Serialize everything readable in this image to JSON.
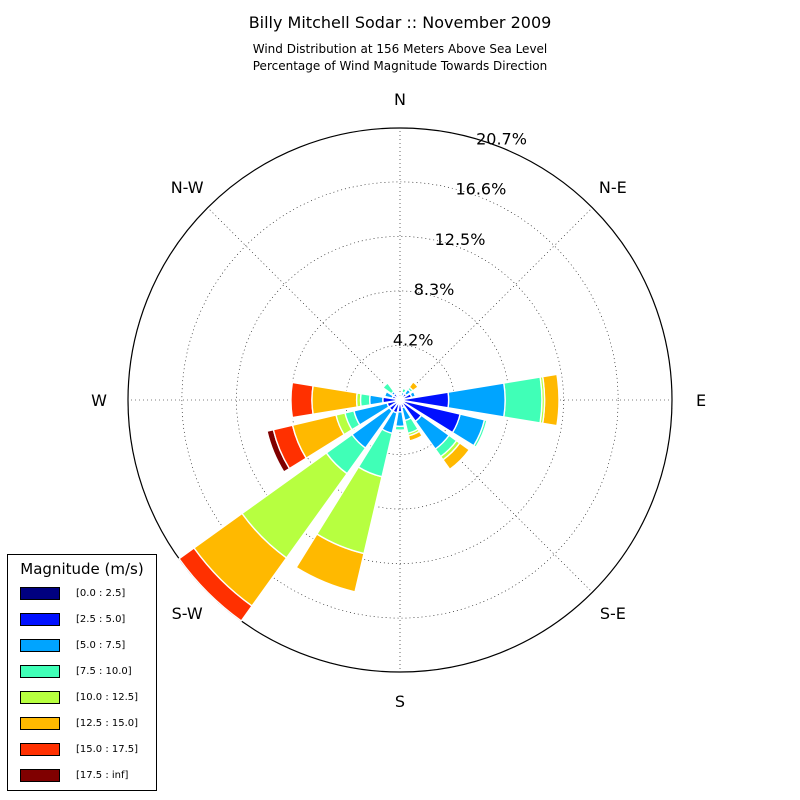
{
  "title": "Billy Mitchell Sodar :: November 2009",
  "subtitle_line1": "Wind Distribution at 156 Meters Above Sea Level",
  "subtitle_line2": "Percentage of Wind Magnitude Towards Direction",
  "legend": {
    "title": "Magnitude (m/s)",
    "items": [
      {
        "label": "[0.0 : 2.5]",
        "color": "#000080"
      },
      {
        "label": "[2.5 : 5.0]",
        "color": "#0010ff"
      },
      {
        "label": "[5.0 : 7.5]",
        "color": "#00a4ff"
      },
      {
        "label": "[7.5 : 10.0]",
        "color": "#40ffb7"
      },
      {
        "label": "[10.0 : 12.5]",
        "color": "#b7ff40"
      },
      {
        "label": "[12.5 : 15.0]",
        "color": "#ffb900"
      },
      {
        "label": "[15.0 : 17.5]",
        "color": "#ff3000"
      },
      {
        "label": "[17.5 : inf]",
        "color": "#800000"
      }
    ]
  },
  "chart_data": {
    "type": "windrose",
    "radial_ticks": [
      "4.2%",
      "8.3%",
      "12.5%",
      "16.6%",
      "20.7%"
    ],
    "radial_tick_values": [
      4.15,
      8.3,
      12.45,
      16.6,
      20.7
    ],
    "rmax": 20.7,
    "direction_labels": [
      "N",
      "N-E",
      "E",
      "S-E",
      "S",
      "S-W",
      "W",
      "N-W"
    ],
    "directions_deg": [
      0,
      22.5,
      45,
      67.5,
      90,
      112.5,
      135,
      157.5,
      180,
      202.5,
      225,
      247.5,
      270,
      292.5,
      315,
      337.5
    ],
    "magnitude_bins": [
      "[0.0 : 2.5]",
      "[2.5 : 5.0]",
      "[5.0 : 7.5]",
      "[7.5 : 10.0]",
      "[10.0 : 12.5]",
      "[12.5 : 15.0]",
      "[15.0 : 17.5]",
      "[17.5 : inf]"
    ],
    "frequencies_cumulative_percent": [
      [
        0.3,
        0.3,
        0.3,
        0.3,
        0.3,
        0.3,
        0.3,
        0.3
      ],
      [
        0.3,
        0.3,
        0.6,
        0.9,
        0.9,
        0.9,
        0.9,
        0.9
      ],
      [
        0.3,
        0.6,
        1.0,
        1.2,
        1.2,
        1.7,
        1.7,
        1.7
      ],
      [
        0.3,
        0.9,
        1.2,
        1.3,
        1.3,
        1.3,
        1.3,
        1.3
      ],
      [
        0.3,
        3.7,
        8.0,
        10.8,
        11.0,
        12.1,
        12.1,
        12.1
      ],
      [
        0.3,
        4.7,
        6.6,
        6.8,
        6.8,
        6.8,
        6.8,
        6.8
      ],
      [
        0.3,
        2.0,
        4.6,
        5.3,
        5.6,
        6.5,
        6.5,
        6.5
      ],
      [
        0.3,
        0.6,
        1.6,
        2.6,
        2.8,
        3.2,
        3.2,
        3.2
      ],
      [
        0.3,
        0.9,
        2.0,
        2.3,
        2.3,
        2.3,
        2.3,
        2.3
      ],
      [
        0.3,
        1.0,
        2.6,
        6.0,
        12.0,
        15.0,
        15.1,
        15.1
      ],
      [
        0.3,
        1.0,
        4.5,
        6.9,
        14.8,
        19.3,
        20.7,
        20.7
      ],
      [
        0.3,
        1.0,
        3.6,
        4.3,
        5.0,
        8.4,
        9.9,
        10.4
      ],
      [
        0.3,
        1.3,
        2.3,
        3.0,
        3.3,
        6.7,
        8.3,
        8.4
      ],
      [
        0.3,
        0.6,
        1.2,
        1.2,
        1.2,
        1.2,
        1.2,
        1.2
      ],
      [
        0.3,
        0.6,
        0.8,
        1.6,
        1.7,
        1.7,
        1.7,
        1.7
      ],
      [
        0.3,
        0.3,
        0.3,
        0.3,
        0.3,
        0.3,
        0.3,
        0.3
      ]
    ],
    "grid": true,
    "legend_position": "bottom-left"
  }
}
